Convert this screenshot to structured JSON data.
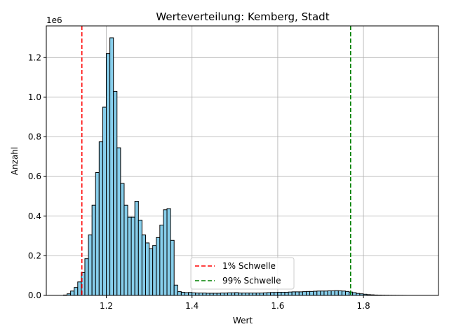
{
  "chart_data": {
    "type": "bar",
    "title": "Werteverteilung: Kemberg, Stadt",
    "xlabel": "Wert",
    "ylabel": "Anzahl",
    "y_offset_label": "1e6",
    "xlim": [
      1.06,
      1.975
    ],
    "ylim": [
      0,
      1360000
    ],
    "xticks": [
      1.2,
      1.4,
      1.6,
      1.8
    ],
    "yticks": [
      0.0,
      0.2,
      0.4,
      0.6,
      0.8,
      1.0,
      1.2
    ],
    "grid": true,
    "bin_width": 0.00833,
    "bins_start": 1.1,
    "values": [
      2000,
      8000,
      22000,
      40000,
      68000,
      115000,
      185000,
      305000,
      455000,
      620000,
      775000,
      950000,
      1220000,
      1300000,
      1030000,
      745000,
      565000,
      455000,
      395000,
      395000,
      475000,
      380000,
      305000,
      265000,
      235000,
      252000,
      292000,
      355000,
      432000,
      438000,
      278000,
      52000,
      19000,
      16000,
      14000,
      15000,
      13000,
      12000,
      12000,
      12000,
      11000,
      11000,
      11000,
      11000,
      12000,
      12000,
      13000,
      13000,
      14000,
      12000,
      12000,
      12000,
      12000,
      12000,
      12000,
      12000,
      13000,
      14000,
      15000,
      15000,
      16000,
      16000,
      16000,
      17000,
      18000,
      18000,
      18000,
      19000,
      20000,
      20000,
      21000,
      22000,
      22000,
      22000,
      23000,
      23000,
      24000,
      23000,
      22000,
      20000,
      17000,
      14000,
      10000,
      8000,
      6000,
      4000,
      3000,
      2000,
      1500,
      1000,
      800,
      500,
      400,
      300,
      200,
      100
    ],
    "bar_color": "#87ceeb",
    "bar_edge_color": "#000000",
    "thresholds": [
      {
        "name": "1% Schwelle",
        "x": 1.143,
        "color": "#ff0000"
      },
      {
        "name": "99% Schwelle",
        "x": 1.77,
        "color": "#008000"
      }
    ],
    "legend_position": "lower-center"
  }
}
